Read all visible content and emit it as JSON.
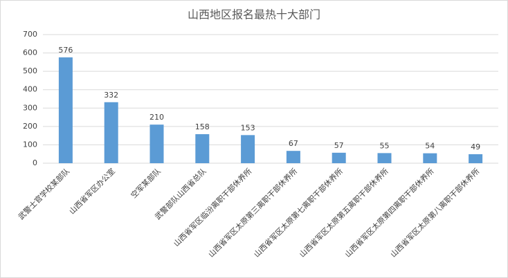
{
  "chart_data": {
    "type": "bar",
    "title": "山西地区报名最热十大部门",
    "categories": [
      "武警士官学校某部队",
      "山西省军区办公室",
      "空军某部队",
      "武警部队山西省总队",
      "山西省军区临汾离职干部休养所",
      "山西省军区太原第三离职干部休养所",
      "山西省军区太原第七离职干部休养所",
      "山西省军区太原第五离职干部休养所",
      "山西省军区太原第四离职干部休养所",
      "山西省军区太原第八离职干部休养所"
    ],
    "values": [
      576,
      332,
      210,
      158,
      153,
      67,
      57,
      55,
      54,
      49
    ],
    "color": "#5b9bd5",
    "ylim": [
      0,
      700
    ],
    "yticks": [
      0,
      100,
      200,
      300,
      400,
      500,
      600,
      700
    ],
    "grid": true
  }
}
